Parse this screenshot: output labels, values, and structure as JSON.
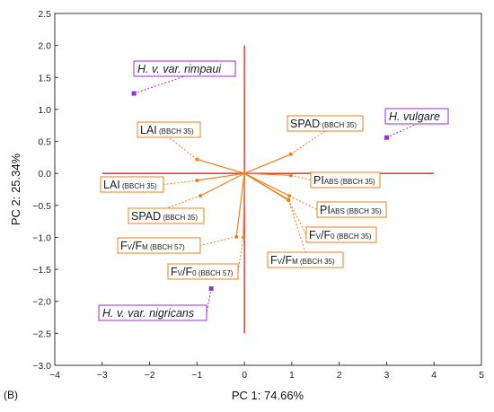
{
  "panel_label": "(B)",
  "chart_data": {
    "type": "scatter",
    "title": "",
    "xlabel": "PC 1: 74.66%",
    "ylabel": "PC 2: 25.34%",
    "xlim": [
      -4,
      5
    ],
    "ylim": [
      -3,
      2.5
    ],
    "xticks": [
      -4,
      -3,
      -2,
      -1,
      0,
      1,
      2,
      3,
      4,
      5
    ],
    "yticks": [
      2.5,
      2.0,
      1.5,
      1.0,
      0.5,
      0.0,
      -0.5,
      -1.0,
      -1.5,
      -2.0,
      -2.5,
      -3.0
    ],
    "xtick_labels": [
      "−4",
      "−3",
      "−2",
      "−1",
      "0",
      "1",
      "2",
      "3",
      "4",
      "5"
    ],
    "ytick_labels": [
      "2.5",
      "2.0",
      "1.5",
      "1.0",
      "0.5",
      "0.0",
      "−0.5",
      "−1.0",
      "−1.5",
      "−2.0",
      "−2.5",
      "−3.0"
    ],
    "reference_lines": {
      "horizontal": {
        "y": 0,
        "x_range": [
          -3,
          4
        ]
      },
      "vertical": {
        "x": 0,
        "y_range": [
          -2.5,
          2.0
        ]
      }
    },
    "grid": false,
    "colors": {
      "loadings": "#f07f1e",
      "genotypes": "#9a2ed8",
      "reference": "#e82020"
    },
    "variables": [
      {
        "main": "LAI",
        "sub": " (BBCH 35)",
        "x": -1.0,
        "y": 0.22
      },
      {
        "main": "LAI",
        "sub": " (BBCH 35)",
        "x": -1.0,
        "y": -0.11
      },
      {
        "main": "SPAD",
        "sub": " (BBCH 35)",
        "x": -0.93,
        "y": -0.35
      },
      {
        "main": "SPAD",
        "sub": " (BBCH 35)",
        "x": 0.98,
        "y": 0.3
      },
      {
        "main": "PI",
        "sub": "ABS (BBCH 35)",
        "x": 0.98,
        "y": -0.03
      },
      {
        "main": "PI",
        "sub": "ABS (BBCH 35)",
        "x": 0.95,
        "y": -0.35
      },
      {
        "main": "F",
        "sub1": "V",
        "mid": "/F",
        "sub": "0 (BBCH 35)",
        "x": 0.93,
        "y": -0.42
      },
      {
        "main": "F",
        "sub1": "V",
        "mid": "/F",
        "sub": "M (BBCH 35)",
        "x": 0.93,
        "y": -0.41
      },
      {
        "main": "F",
        "sub1": "V",
        "mid": "/F",
        "sub": "M (BBCH 57)",
        "x": -0.17,
        "y": -0.99
      },
      {
        "main": "F",
        "sub1": "V",
        "mid": "/F",
        "sub": "0 (BBCH 57)",
        "x": -0.02,
        "y": -1.0
      }
    ],
    "genotypes": [
      {
        "name": "H. v. var. rimpaui",
        "x": -2.33,
        "y": 1.25
      },
      {
        "name": "H. vulgare",
        "x": 3.0,
        "y": 0.56
      },
      {
        "name": "H. v. var. nigricans",
        "x": -0.7,
        "y": -1.8
      }
    ]
  }
}
